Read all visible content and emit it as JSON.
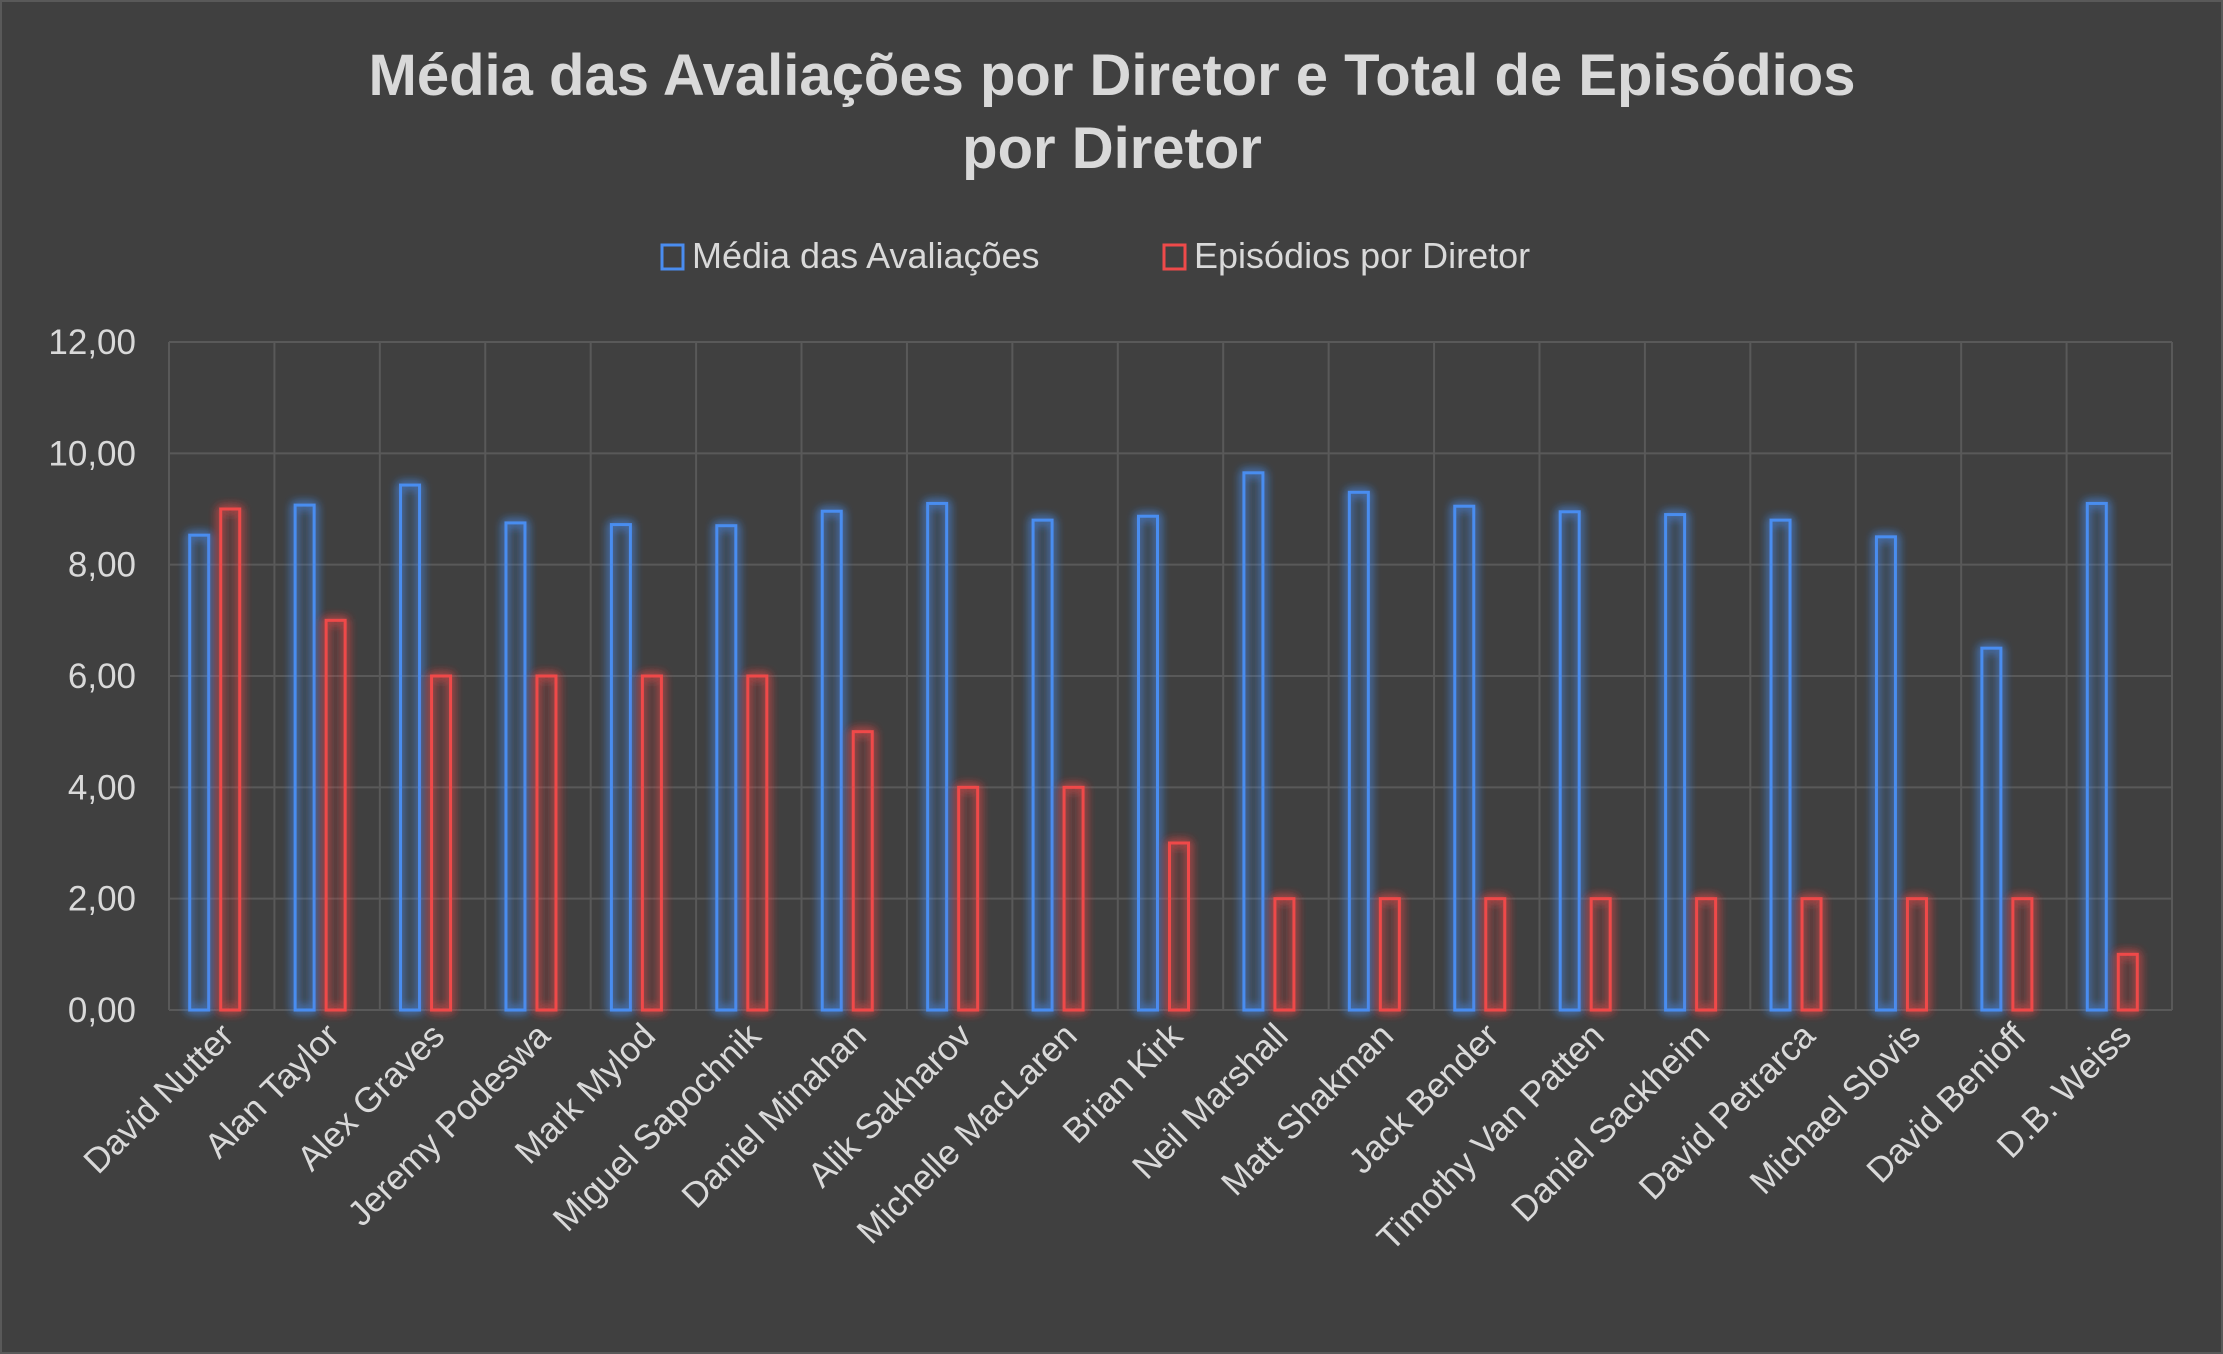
{
  "chart_data": {
    "type": "bar",
    "title_lines": [
      "Média das Avaliações por Diretor e Total de Episódios",
      "por Diretor"
    ],
    "xlabel": "",
    "ylabel": "",
    "ylim": [
      0,
      12
    ],
    "yticks": [
      "0,00",
      "2,00",
      "4,00",
      "6,00",
      "8,00",
      "10,00",
      "12,00"
    ],
    "grid": true,
    "legend_position": "top",
    "categories": [
      "David Nutter",
      "Alan Taylor",
      "Alex Graves",
      "Jeremy Podeswa",
      "Mark Mylod",
      "Miguel Sapochnik",
      "Daniel Minahan",
      "Alik Sakharov",
      "Michelle MacLaren",
      "Brian Kirk",
      "Neil Marshall",
      "Matt Shakman",
      "Jack Bender",
      "Timothy Van Patten",
      "Daniel Sackheim",
      "David Petrarca",
      "Michael Slovis",
      "David Benioff",
      "D.B. Weiss"
    ],
    "series": [
      {
        "name": "Média das Avaliações",
        "color": "#4a8df0",
        "values": [
          8.53,
          9.07,
          9.43,
          8.75,
          8.72,
          8.7,
          8.96,
          9.1,
          8.8,
          8.87,
          9.65,
          9.3,
          9.05,
          8.95,
          8.9,
          8.8,
          8.5,
          6.5,
          9.1
        ]
      },
      {
        "name": "Episódios por Diretor",
        "color": "#ef4a4a",
        "values": [
          9,
          7,
          6,
          6,
          6,
          6,
          5,
          4,
          4,
          3,
          2,
          2,
          2,
          2,
          2,
          2,
          2,
          2,
          1
        ]
      }
    ]
  }
}
